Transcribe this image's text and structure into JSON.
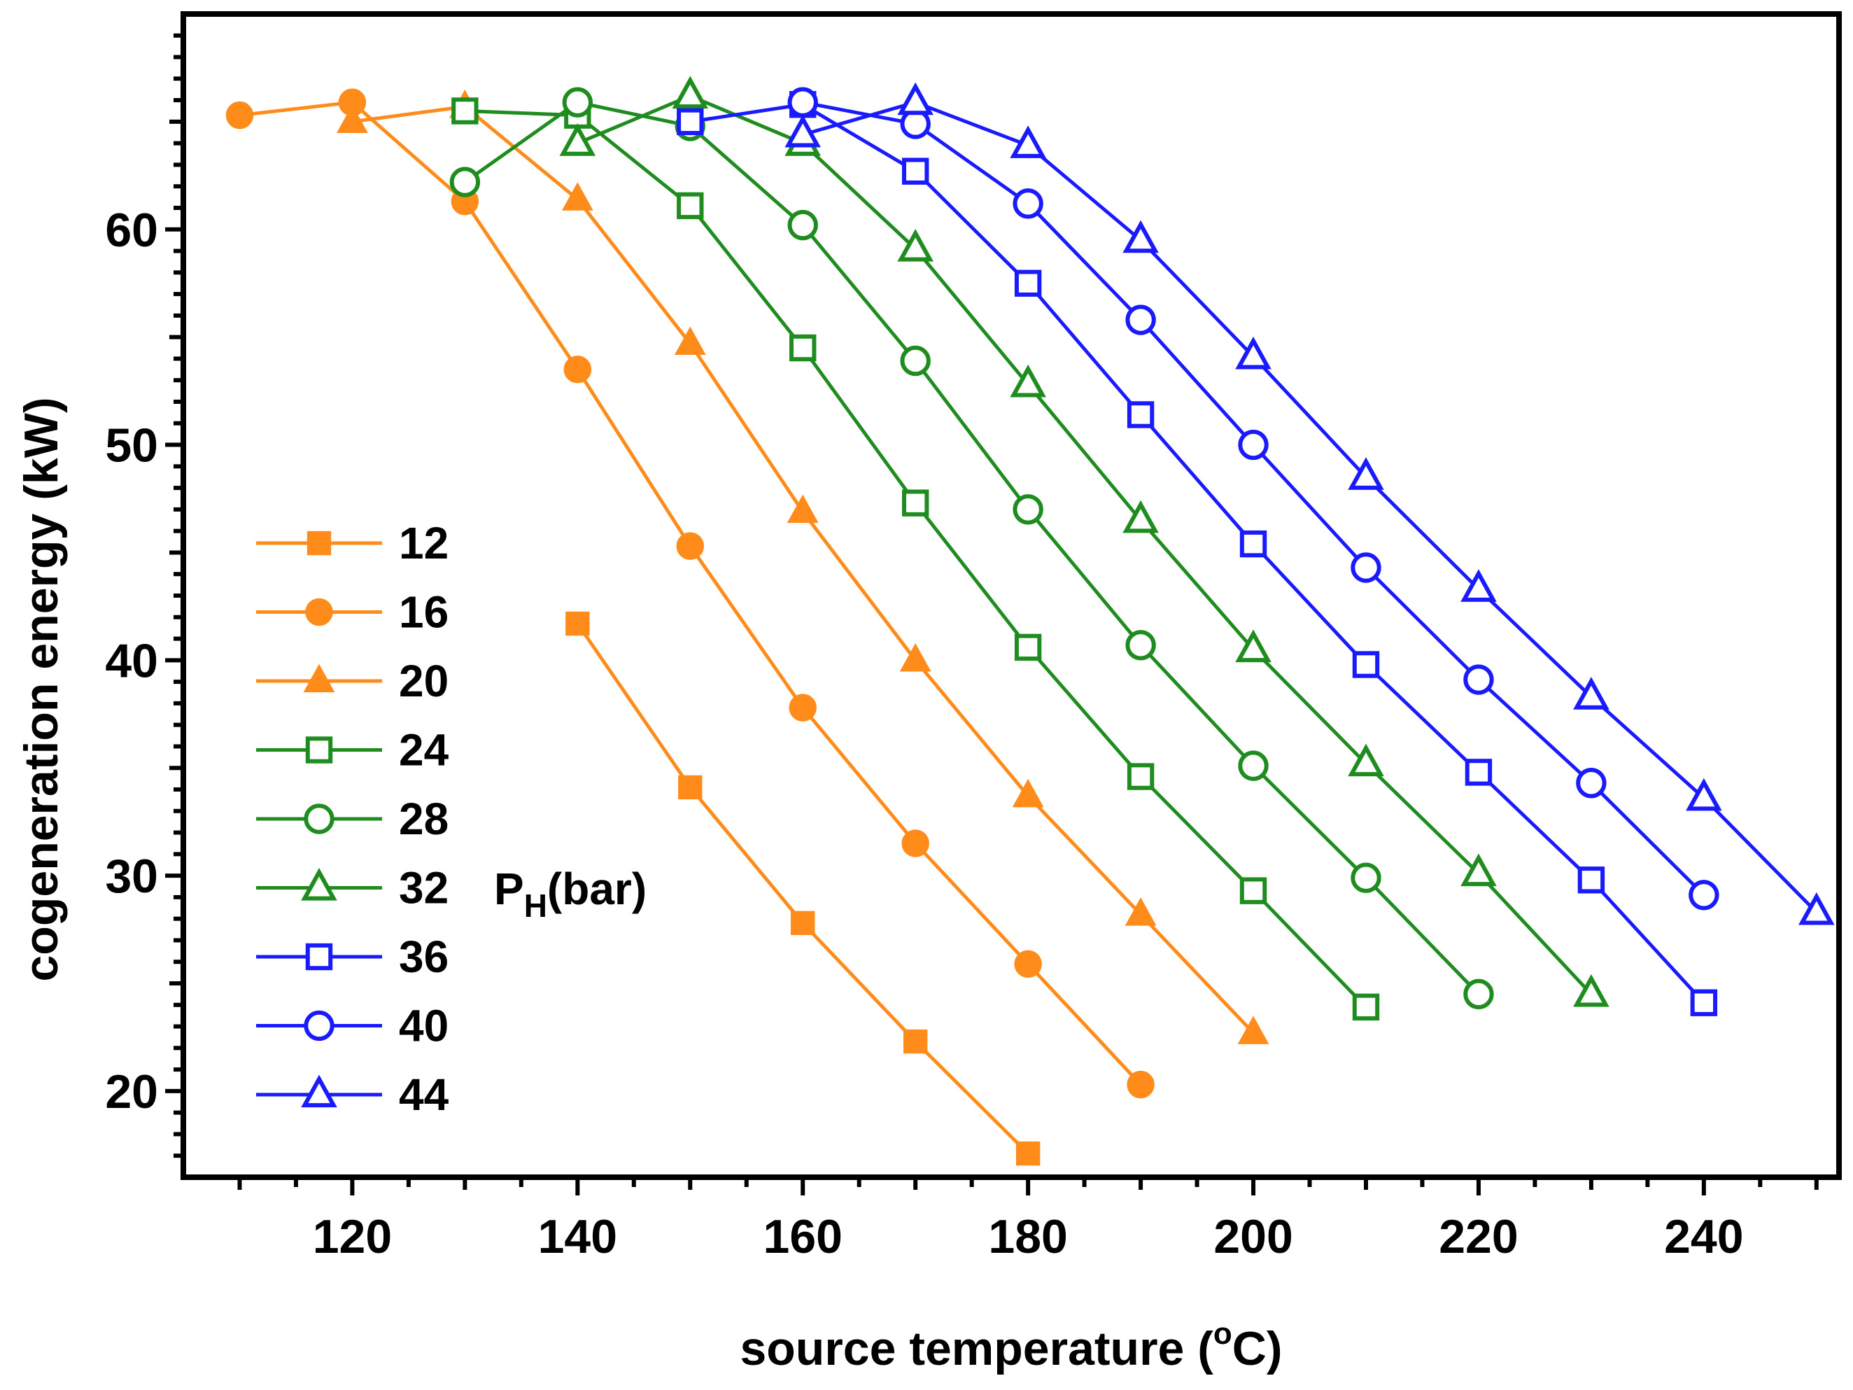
{
  "chart_data": {
    "type": "line",
    "title": "",
    "xlabel": "source temperature (",
    "xlabel_sup": "o",
    "xlabel_tail": "C)",
    "ylabel": "cogeneration energy (kW)",
    "xlim": [
      105,
      252
    ],
    "ylim": [
      16,
      70
    ],
    "xticks": [
      120,
      140,
      160,
      180,
      200,
      220,
      240
    ],
    "yticks": [
      20,
      30,
      40,
      50,
      60
    ],
    "legend_position": "left",
    "legend_note": "P",
    "legend_note_sub": "H",
    "legend_note_tail": "(bar)",
    "series": [
      {
        "name": "12",
        "color": "#ff8c1a",
        "marker": "square",
        "filled": true,
        "x": [
          140,
          150,
          160,
          170,
          180
        ],
        "y": [
          41.7,
          34.1,
          27.8,
          22.3,
          17.1
        ]
      },
      {
        "name": "16",
        "color": "#ff8c1a",
        "marker": "circle",
        "filled": true,
        "x": [
          110,
          120,
          130,
          140,
          150,
          160,
          170,
          180,
          190
        ],
        "y": [
          65.3,
          65.9,
          61.3,
          53.5,
          45.3,
          37.8,
          31.5,
          25.9,
          20.3
        ]
      },
      {
        "name": "20",
        "color": "#ff8c1a",
        "marker": "triangle",
        "filled": true,
        "x": [
          120,
          130,
          140,
          150,
          160,
          170,
          180,
          190,
          200
        ],
        "y": [
          65.0,
          65.7,
          61.4,
          54.7,
          46.9,
          40.0,
          33.7,
          28.2,
          22.7
        ]
      },
      {
        "name": "24",
        "color": "#1e8c1e",
        "marker": "square",
        "filled": false,
        "x": [
          130,
          140,
          150,
          160,
          170,
          180,
          190,
          200,
          210
        ],
        "y": [
          65.5,
          65.3,
          61.1,
          54.5,
          47.3,
          40.6,
          34.6,
          29.3,
          23.9
        ]
      },
      {
        "name": "28",
        "color": "#1e8c1e",
        "marker": "circle",
        "filled": false,
        "x": [
          130,
          140,
          150,
          160,
          170,
          180,
          190,
          200,
          210,
          220
        ],
        "y": [
          62.2,
          65.9,
          64.8,
          60.2,
          53.9,
          47.0,
          40.7,
          35.1,
          29.9,
          24.5
        ]
      },
      {
        "name": "32",
        "color": "#1e8c1e",
        "marker": "triangle",
        "filled": false,
        "x": [
          140,
          150,
          160,
          170,
          180,
          190,
          200,
          210,
          220,
          230
        ],
        "y": [
          64.0,
          66.2,
          64.0,
          59.1,
          52.8,
          46.5,
          40.5,
          35.2,
          30.1,
          24.5
        ]
      },
      {
        "name": "36",
        "color": "#1a1aff",
        "marker": "square",
        "filled": false,
        "x": [
          150,
          160,
          170,
          180,
          190,
          200,
          210,
          220,
          230,
          240
        ],
        "y": [
          65.0,
          65.8,
          62.7,
          57.5,
          51.4,
          45.4,
          39.8,
          34.8,
          29.8,
          24.1
        ]
      },
      {
        "name": "40",
        "color": "#1a1aff",
        "marker": "circle",
        "filled": false,
        "x": [
          160,
          170,
          180,
          190,
          200,
          210,
          220,
          230,
          240
        ],
        "y": [
          65.9,
          64.9,
          61.2,
          55.8,
          50.0,
          44.3,
          39.1,
          34.3,
          29.1
        ]
      },
      {
        "name": "44",
        "color": "#1a1aff",
        "marker": "triangle",
        "filled": false,
        "x": [
          160,
          170,
          180,
          190,
          200,
          210,
          220,
          230,
          240,
          250
        ],
        "y": [
          64.4,
          65.9,
          63.9,
          59.5,
          54.1,
          48.5,
          43.3,
          38.3,
          33.6,
          28.3
        ]
      }
    ]
  }
}
